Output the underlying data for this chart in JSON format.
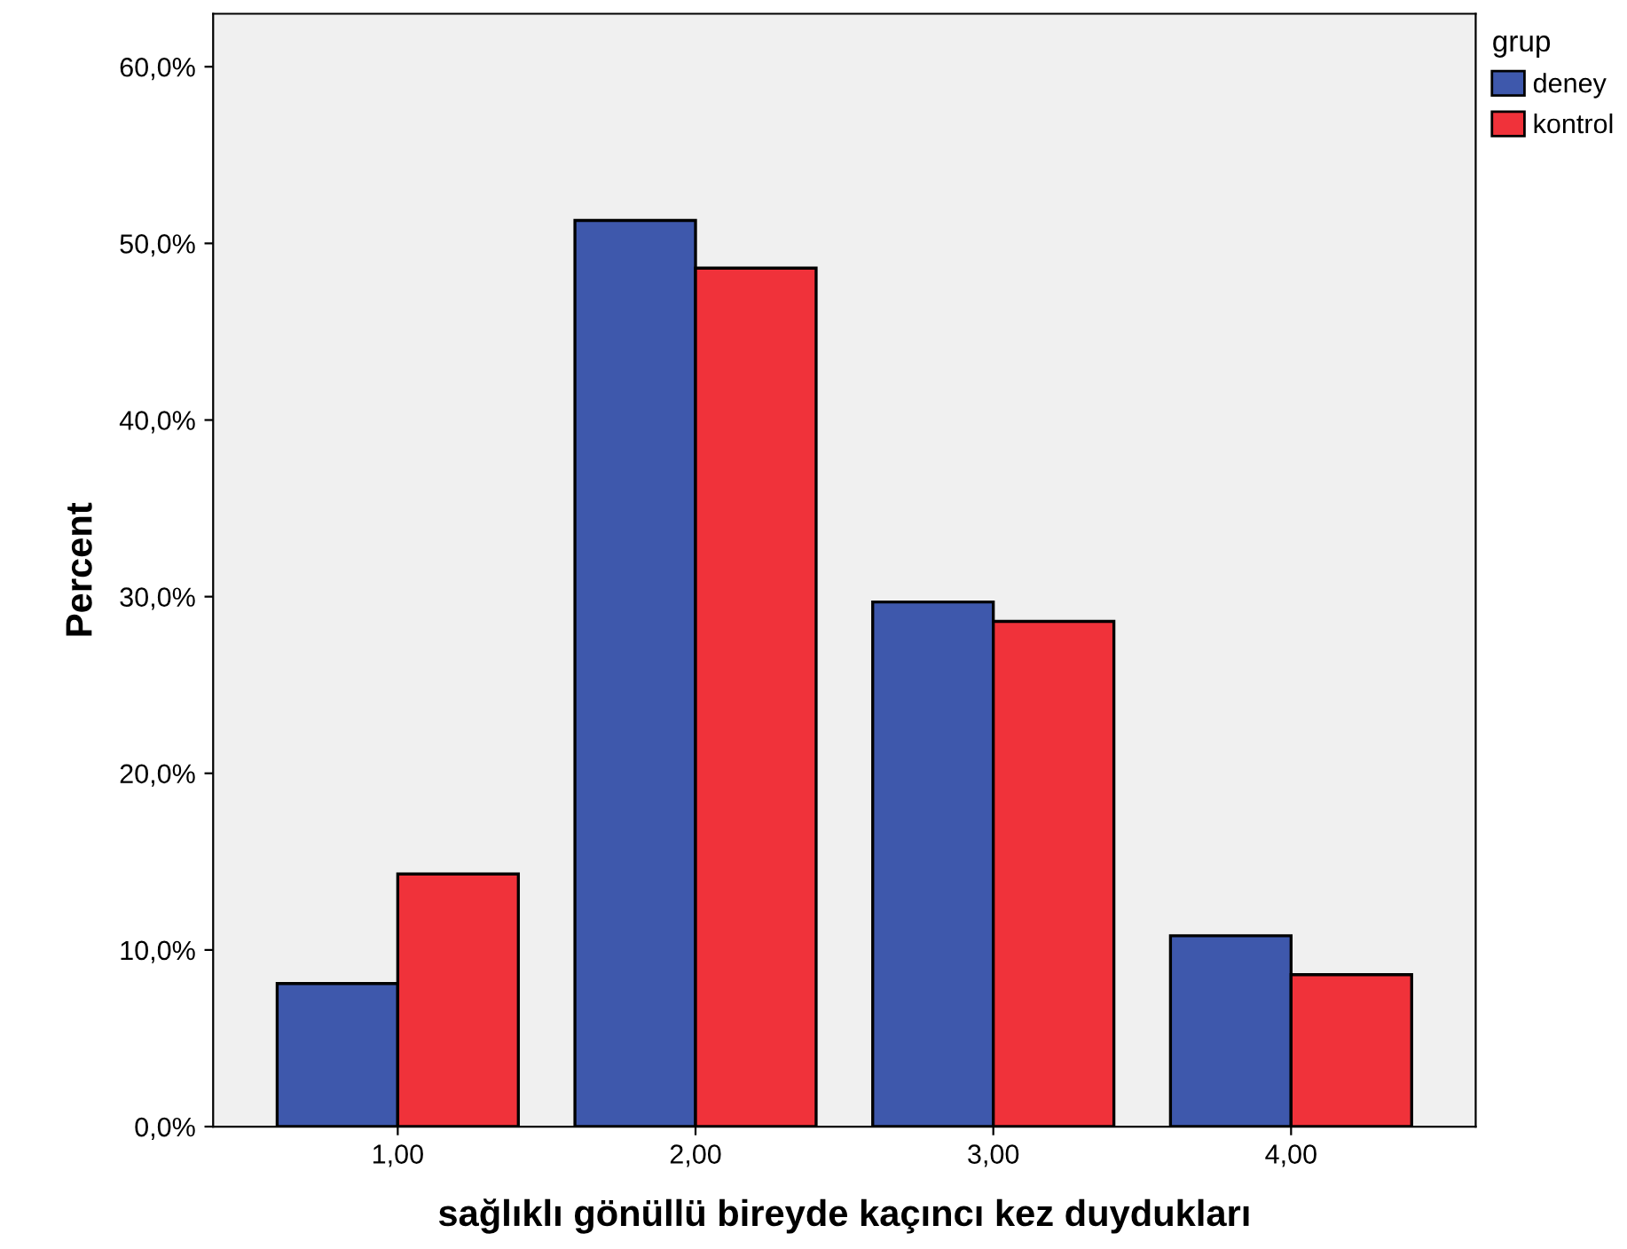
{
  "chart_data": {
    "type": "bar",
    "xlabel": "sağlıklı gönüllü bireyde kaçıncı kez duydukları",
    "ylabel": "Percent",
    "legend_title": "grup",
    "categories": [
      "1,00",
      "2,00",
      "3,00",
      "4,00"
    ],
    "series": [
      {
        "name": "deney",
        "color": "#3e58ac",
        "values": [
          8.1,
          51.3,
          29.7,
          10.8
        ]
      },
      {
        "name": "kontrol",
        "color": "#f0323a",
        "values": [
          14.3,
          48.6,
          28.6,
          8.6
        ]
      }
    ],
    "ylim": [
      0,
      63
    ],
    "yticks": [
      {
        "value": 0,
        "label": "0,0%"
      },
      {
        "value": 10,
        "label": "10,0%"
      },
      {
        "value": 20,
        "label": "20,0%"
      },
      {
        "value": 30,
        "label": "30,0%"
      },
      {
        "value": 40,
        "label": "40,0%"
      },
      {
        "value": 50,
        "label": "50,0%"
      },
      {
        "value": 60,
        "label": "60,0%"
      }
    ],
    "grid": false,
    "legend": "top right"
  }
}
